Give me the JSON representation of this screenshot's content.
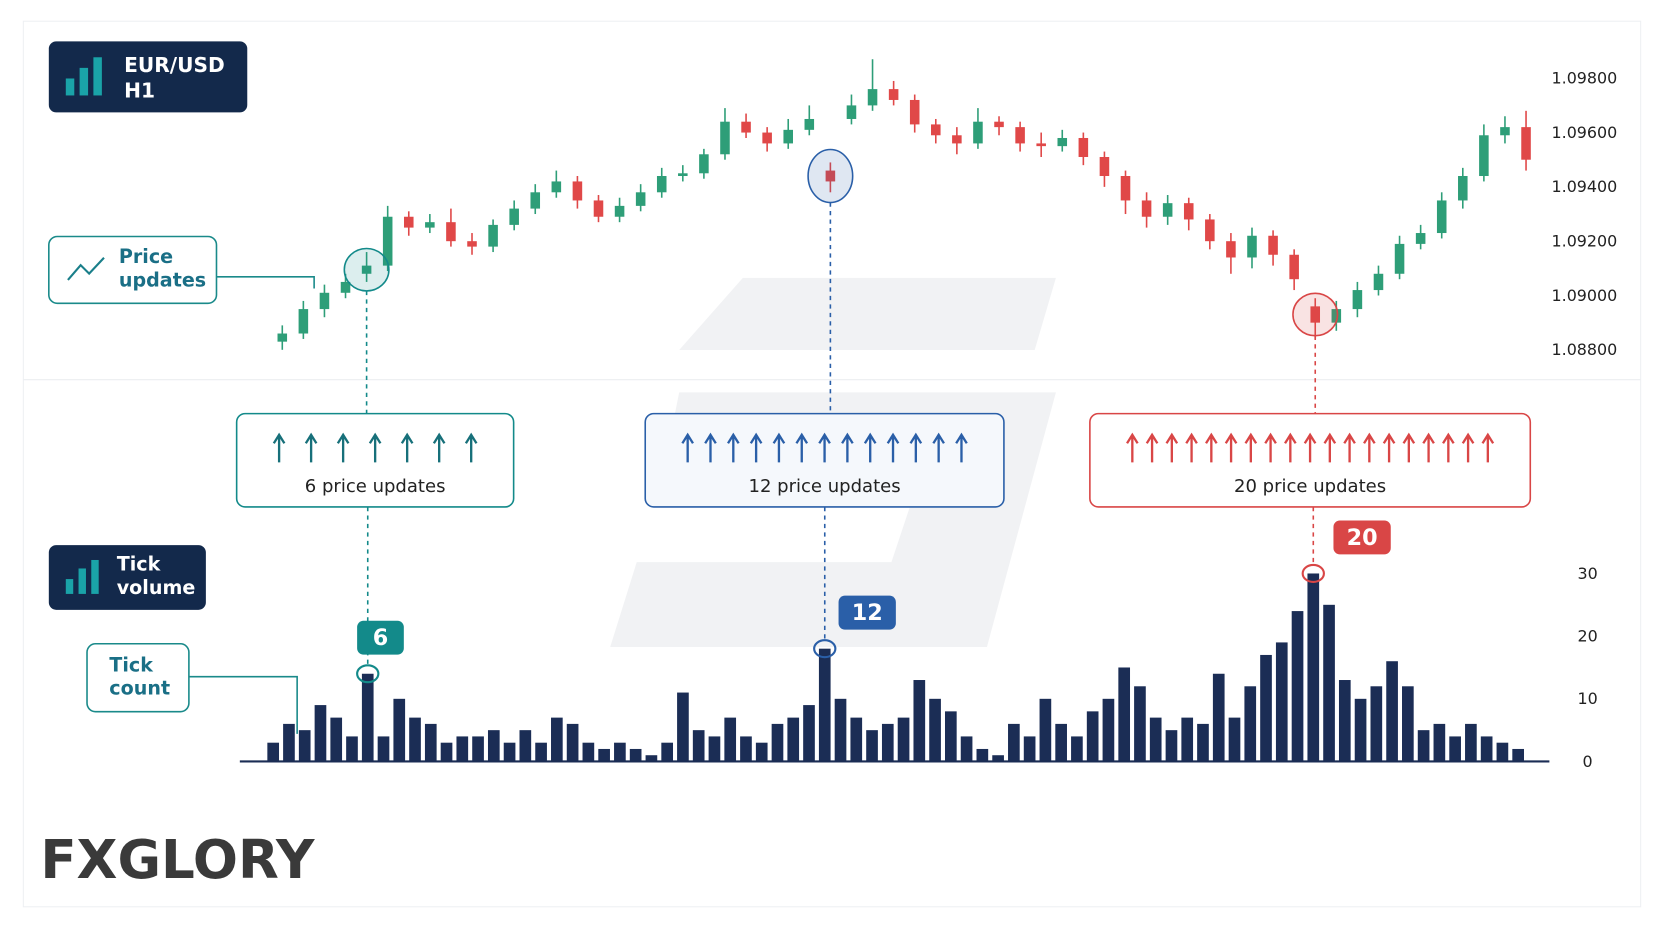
{
  "header": {
    "symbol": "EUR/USD",
    "timeframe": "H1"
  },
  "labels": {
    "price_updates": "Price updates",
    "tick_volume": "Tick volume",
    "tick_count": "Tick count"
  },
  "callouts": [
    {
      "text": "6 price updates",
      "badge": 6,
      "color": "#138a8a"
    },
    {
      "text": "12 price updates",
      "badge": 12,
      "color": "#2a5fa8"
    },
    {
      "text": "20 price updates",
      "badge": 20,
      "color": "#d94646"
    }
  ],
  "logo": "FXGLORY",
  "chart_data": [
    {
      "type": "candlestick",
      "up_color": "#2e9e78",
      "down_color": "#e04848",
      "open": [
        1.0883,
        1.0886,
        1.0895,
        1.0901,
        1.0908,
        1.0911,
        1.0929,
        1.0925,
        1.0927,
        1.092,
        1.0918,
        1.0926,
        1.0932,
        1.0938,
        1.0942,
        1.0935,
        1.0929,
        1.0933,
        1.0938,
        1.0944,
        1.0945,
        1.0952,
        1.0964,
        1.096,
        1.0956,
        1.0961,
        1.0946,
        1.0965,
        1.097,
        1.0976,
        1.0972,
        1.0963,
        1.0959,
        1.0956,
        1.0964,
        1.0962,
        1.0956,
        1.0955,
        1.0958,
        1.0951,
        1.0944,
        1.0935,
        1.0929,
        1.0934,
        1.0928,
        1.092,
        1.0914,
        1.0922,
        1.0915,
        1.0896,
        1.089,
        1.0895,
        1.0902,
        1.0908,
        1.0919,
        1.0923,
        1.0935,
        1.0944,
        1.0959,
        1.0962
      ],
      "high": [
        1.0889,
        1.0898,
        1.0904,
        1.0908,
        1.0916,
        1.0933,
        1.0931,
        1.093,
        1.0932,
        1.0923,
        1.0928,
        1.0935,
        1.0941,
        1.0946,
        1.0944,
        1.0937,
        1.0936,
        1.0941,
        1.0947,
        1.0948,
        1.0954,
        1.0969,
        1.0967,
        1.0962,
        1.0965,
        1.097,
        1.0949,
        1.0974,
        1.0987,
        1.0979,
        1.0974,
        1.0965,
        1.0962,
        1.0969,
        1.0966,
        1.0964,
        1.096,
        1.0961,
        1.096,
        1.0953,
        1.0946,
        1.0938,
        1.0937,
        1.0936,
        1.093,
        1.0923,
        1.0925,
        1.0924,
        1.0917,
        1.0899,
        1.0898,
        1.0905,
        1.0911,
        1.0922,
        1.0926,
        1.0938,
        1.0947,
        1.0963,
        1.0966,
        1.0968
      ],
      "low": [
        1.088,
        1.0884,
        1.0892,
        1.0899,
        1.0905,
        1.0909,
        1.0922,
        1.0923,
        1.0918,
        1.0915,
        1.0916,
        1.0924,
        1.093,
        1.0936,
        1.0932,
        1.0927,
        1.0927,
        1.0931,
        1.0936,
        1.0942,
        1.0943,
        1.095,
        1.0958,
        1.0953,
        1.0954,
        1.0959,
        1.0938,
        1.0963,
        1.0968,
        1.097,
        1.096,
        1.0956,
        1.0952,
        1.0954,
        1.0959,
        1.0953,
        1.0951,
        1.0953,
        1.0948,
        1.094,
        1.093,
        1.0925,
        1.0926,
        1.0924,
        1.0917,
        1.0908,
        1.091,
        1.0911,
        1.0902,
        1.0884,
        1.0887,
        1.0892,
        1.09,
        1.0906,
        1.0917,
        1.0921,
        1.0932,
        1.0942,
        1.0956,
        1.0946
      ],
      "close": [
        1.0886,
        1.0895,
        1.0901,
        1.0905,
        1.0911,
        1.0929,
        1.0925,
        1.0927,
        1.092,
        1.0918,
        1.0926,
        1.0932,
        1.0938,
        1.0942,
        1.0935,
        1.0929,
        1.0933,
        1.0938,
        1.0944,
        1.0945,
        1.0952,
        1.0964,
        1.096,
        1.0956,
        1.0961,
        1.0965,
        1.0942,
        1.097,
        1.0976,
        1.0972,
        1.0963,
        1.0959,
        1.0956,
        1.0964,
        1.0962,
        1.0956,
        1.0955,
        1.0958,
        1.0951,
        1.0944,
        1.0935,
        1.0929,
        1.0934,
        1.0928,
        1.092,
        1.0914,
        1.0922,
        1.0915,
        1.0906,
        1.089,
        1.0895,
        1.0902,
        1.0908,
        1.0919,
        1.0923,
        1.0935,
        1.0944,
        1.0959,
        1.0962,
        1.095
      ],
      "ylim": [
        1.0869,
        1.1001
      ],
      "yticks": [
        {
          "value": 1.098,
          "label": "1.09800"
        },
        {
          "value": 1.096,
          "label": "1.09600"
        },
        {
          "value": 1.094,
          "label": "1.09400"
        },
        {
          "value": 1.092,
          "label": "1.09200"
        },
        {
          "value": 1.09,
          "label": "1.09000"
        },
        {
          "value": 1.088,
          "label": "1.08800"
        }
      ]
    },
    {
      "type": "bar",
      "color": "#1b2d55",
      "values": [
        3,
        6,
        5,
        9,
        7,
        4,
        14,
        4,
        10,
        7,
        6,
        3,
        4,
        4,
        5,
        3,
        5,
        3,
        7,
        6,
        3,
        2,
        3,
        2,
        1,
        3,
        11,
        5,
        4,
        7,
        4,
        3,
        6,
        7,
        9,
        18,
        10,
        7,
        5,
        6,
        7,
        13,
        10,
        8,
        4,
        2,
        1,
        6,
        4,
        10,
        6,
        4,
        8,
        10,
        15,
        12,
        7,
        5,
        7,
        6,
        14,
        7,
        12,
        17,
        19,
        24,
        30,
        25,
        13,
        10,
        12,
        16,
        12,
        5,
        6,
        4,
        6,
        4,
        3,
        2
      ],
      "ylim": [
        0,
        33
      ],
      "yticks": [
        0,
        10,
        20,
        30
      ]
    }
  ]
}
